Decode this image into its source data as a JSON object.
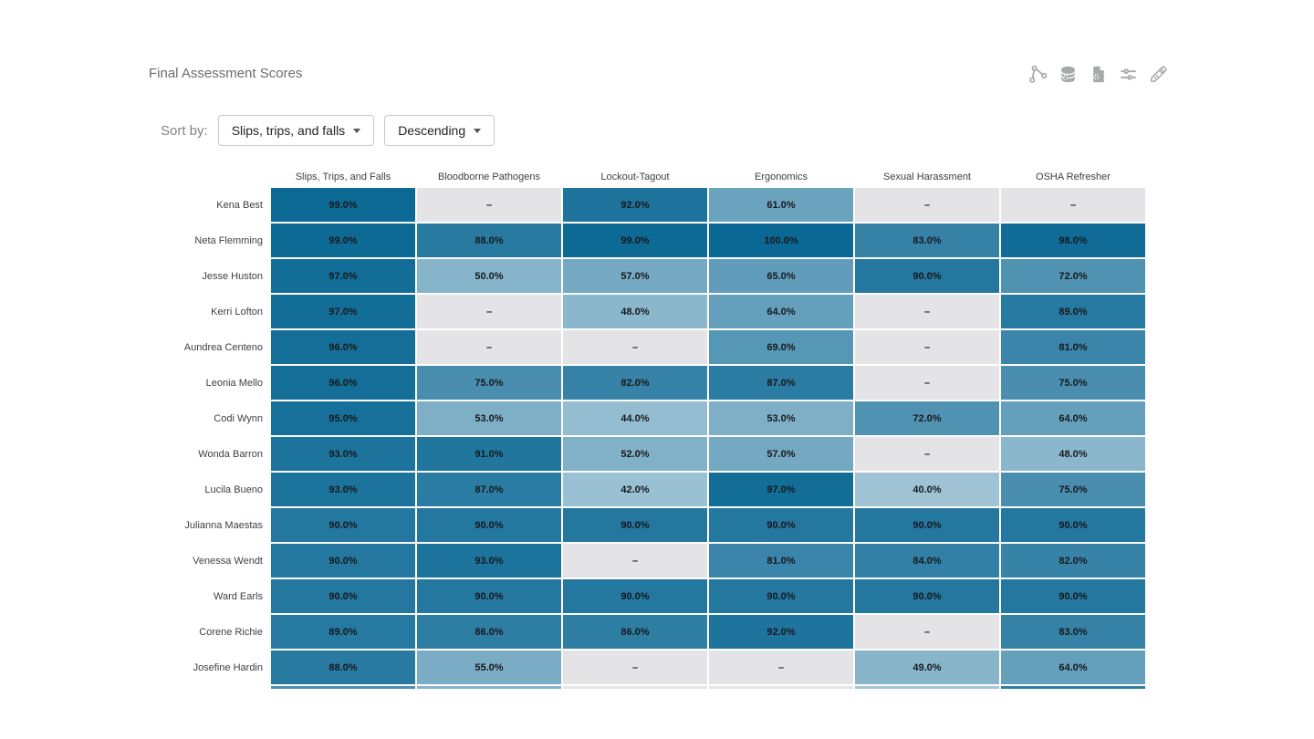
{
  "title": "Final Assessment Scores",
  "toolbar": {
    "icons": [
      "share-icon",
      "database-export-icon",
      "file-export-icon",
      "parameters-icon",
      "edit-pencil-icon"
    ],
    "icon_color": "#a6a8aa"
  },
  "sort": {
    "label": "Sort by:",
    "column": "Slips, trips, and falls",
    "direction": "Descending"
  },
  "chart_data": {
    "type": "heatmap",
    "title": "Final Assessment Scores",
    "columns": [
      "Slips, Trips, and Falls",
      "Bloodborne Pathogens",
      "Lockout-Tagout",
      "Ergonomics",
      "Sexual Harassment",
      "OSHA Refresher"
    ],
    "rows": [
      {
        "name": "Kena Best",
        "values": [
          99,
          null,
          92,
          61,
          null,
          null
        ]
      },
      {
        "name": "Neta Flemming",
        "values": [
          99,
          88,
          99,
          100,
          83,
          98
        ]
      },
      {
        "name": "Jesse Huston",
        "values": [
          97,
          50,
          57,
          65,
          90,
          72
        ]
      },
      {
        "name": "Kerri Lofton",
        "values": [
          97,
          null,
          48,
          64,
          null,
          89
        ]
      },
      {
        "name": "Aundrea Centeno",
        "values": [
          96,
          null,
          null,
          69,
          null,
          81
        ]
      },
      {
        "name": "Leonia Mello",
        "values": [
          96,
          75,
          82,
          87,
          null,
          75
        ]
      },
      {
        "name": "Codi Wynn",
        "values": [
          95,
          53,
          44,
          53,
          72,
          64
        ]
      },
      {
        "name": "Wonda Barron",
        "values": [
          93,
          91,
          52,
          57,
          null,
          48
        ]
      },
      {
        "name": "Lucila Bueno",
        "values": [
          93,
          87,
          42,
          97,
          40,
          75
        ]
      },
      {
        "name": "Julianna Maestas",
        "values": [
          90,
          90,
          90,
          90,
          90,
          90
        ]
      },
      {
        "name": "Venessa Wendt",
        "values": [
          90,
          93,
          null,
          81,
          84,
          82
        ]
      },
      {
        "name": "Ward Earls",
        "values": [
          90,
          90,
          90,
          90,
          90,
          90
        ]
      },
      {
        "name": "Corene Richie",
        "values": [
          89,
          86,
          86,
          92,
          null,
          83
        ]
      },
      {
        "name": "Josefine Hardin",
        "values": [
          88,
          55,
          null,
          null,
          49,
          64
        ]
      }
    ],
    "value_format": "percent_1dp",
    "null_label": "–",
    "color_scale": {
      "min_value": 40,
      "max_value": 100,
      "min_color": "#9fc3d5",
      "max_color": "#0b6894",
      "null_color": "#e4e4e6"
    },
    "partial_next_row_colors": [
      "#4a8fae",
      "#85b3c9",
      "#e4e4e6",
      "#e4e4e6",
      "#a3c5d6",
      "#2e7ca4"
    ]
  }
}
